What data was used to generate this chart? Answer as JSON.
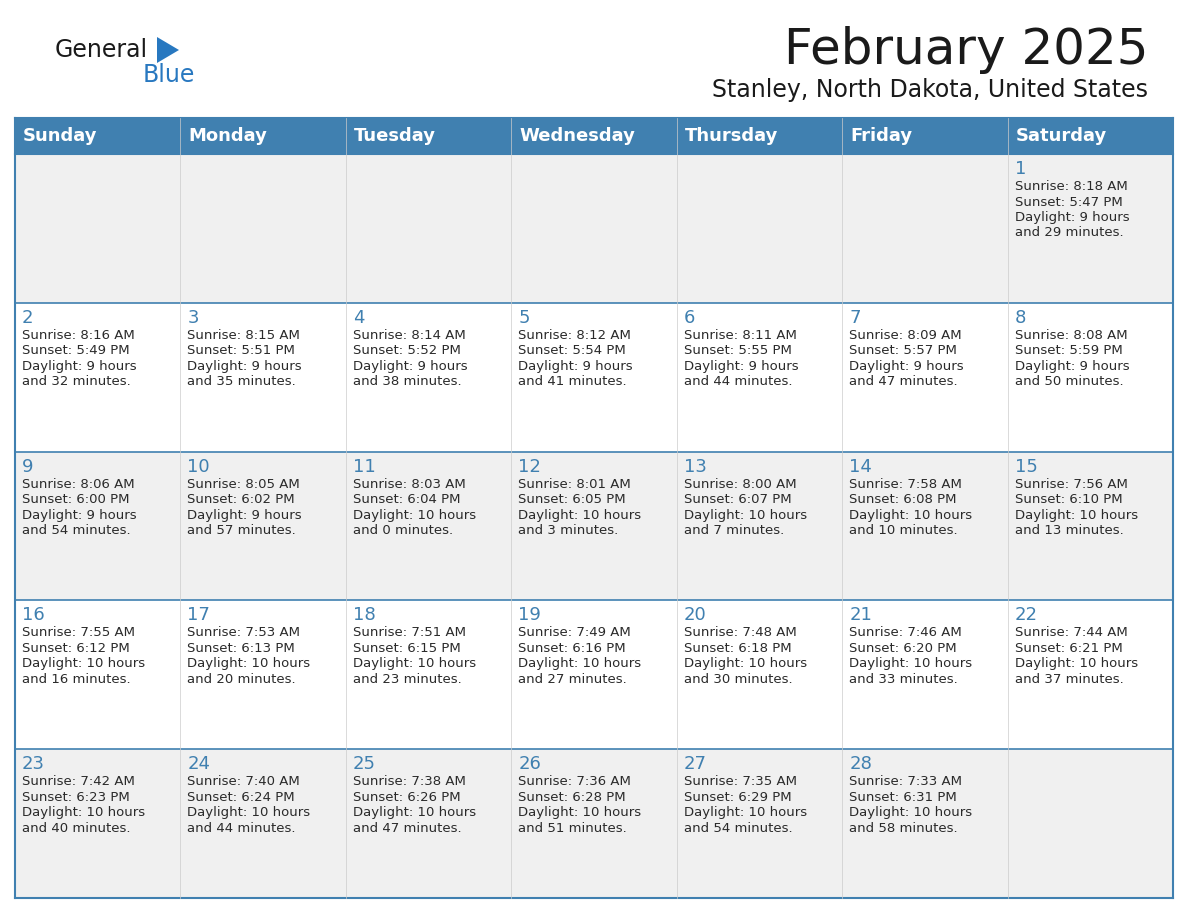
{
  "title": "February 2025",
  "subtitle": "Stanley, North Dakota, United States",
  "header_color": "#4080b0",
  "header_text_color": "#ffffff",
  "cell_bg_odd": "#f0f0f0",
  "cell_bg_even": "#ffffff",
  "border_color": "#4080b0",
  "border_light": "#cccccc",
  "day_headers": [
    "Sunday",
    "Monday",
    "Tuesday",
    "Wednesday",
    "Thursday",
    "Friday",
    "Saturday"
  ],
  "title_color": "#1a1a1a",
  "subtitle_color": "#1a1a1a",
  "day_number_color": "#4080b0",
  "info_color": "#2a2a2a",
  "logo_general_color": "#1a1a1a",
  "logo_blue_color": "#2878c0",
  "logo_triangle_color": "#2878c0",
  "calendar_data": [
    [
      null,
      null,
      null,
      null,
      null,
      null,
      {
        "day": 1,
        "sunrise": "8:18 AM",
        "sunset": "5:47 PM",
        "daylight": "9 hours and 29 minutes."
      }
    ],
    [
      {
        "day": 2,
        "sunrise": "8:16 AM",
        "sunset": "5:49 PM",
        "daylight": "9 hours and 32 minutes."
      },
      {
        "day": 3,
        "sunrise": "8:15 AM",
        "sunset": "5:51 PM",
        "daylight": "9 hours and 35 minutes."
      },
      {
        "day": 4,
        "sunrise": "8:14 AM",
        "sunset": "5:52 PM",
        "daylight": "9 hours and 38 minutes."
      },
      {
        "day": 5,
        "sunrise": "8:12 AM",
        "sunset": "5:54 PM",
        "daylight": "9 hours and 41 minutes."
      },
      {
        "day": 6,
        "sunrise": "8:11 AM",
        "sunset": "5:55 PM",
        "daylight": "9 hours and 44 minutes."
      },
      {
        "day": 7,
        "sunrise": "8:09 AM",
        "sunset": "5:57 PM",
        "daylight": "9 hours and 47 minutes."
      },
      {
        "day": 8,
        "sunrise": "8:08 AM",
        "sunset": "5:59 PM",
        "daylight": "9 hours and 50 minutes."
      }
    ],
    [
      {
        "day": 9,
        "sunrise": "8:06 AM",
        "sunset": "6:00 PM",
        "daylight": "9 hours and 54 minutes."
      },
      {
        "day": 10,
        "sunrise": "8:05 AM",
        "sunset": "6:02 PM",
        "daylight": "9 hours and 57 minutes."
      },
      {
        "day": 11,
        "sunrise": "8:03 AM",
        "sunset": "6:04 PM",
        "daylight": "10 hours and 0 minutes."
      },
      {
        "day": 12,
        "sunrise": "8:01 AM",
        "sunset": "6:05 PM",
        "daylight": "10 hours and 3 minutes."
      },
      {
        "day": 13,
        "sunrise": "8:00 AM",
        "sunset": "6:07 PM",
        "daylight": "10 hours and 7 minutes."
      },
      {
        "day": 14,
        "sunrise": "7:58 AM",
        "sunset": "6:08 PM",
        "daylight": "10 hours and 10 minutes."
      },
      {
        "day": 15,
        "sunrise": "7:56 AM",
        "sunset": "6:10 PM",
        "daylight": "10 hours and 13 minutes."
      }
    ],
    [
      {
        "day": 16,
        "sunrise": "7:55 AM",
        "sunset": "6:12 PM",
        "daylight": "10 hours and 16 minutes."
      },
      {
        "day": 17,
        "sunrise": "7:53 AM",
        "sunset": "6:13 PM",
        "daylight": "10 hours and 20 minutes."
      },
      {
        "day": 18,
        "sunrise": "7:51 AM",
        "sunset": "6:15 PM",
        "daylight": "10 hours and 23 minutes."
      },
      {
        "day": 19,
        "sunrise": "7:49 AM",
        "sunset": "6:16 PM",
        "daylight": "10 hours and 27 minutes."
      },
      {
        "day": 20,
        "sunrise": "7:48 AM",
        "sunset": "6:18 PM",
        "daylight": "10 hours and 30 minutes."
      },
      {
        "day": 21,
        "sunrise": "7:46 AM",
        "sunset": "6:20 PM",
        "daylight": "10 hours and 33 minutes."
      },
      {
        "day": 22,
        "sunrise": "7:44 AM",
        "sunset": "6:21 PM",
        "daylight": "10 hours and 37 minutes."
      }
    ],
    [
      {
        "day": 23,
        "sunrise": "7:42 AM",
        "sunset": "6:23 PM",
        "daylight": "10 hours and 40 minutes."
      },
      {
        "day": 24,
        "sunrise": "7:40 AM",
        "sunset": "6:24 PM",
        "daylight": "10 hours and 44 minutes."
      },
      {
        "day": 25,
        "sunrise": "7:38 AM",
        "sunset": "6:26 PM",
        "daylight": "10 hours and 47 minutes."
      },
      {
        "day": 26,
        "sunrise": "7:36 AM",
        "sunset": "6:28 PM",
        "daylight": "10 hours and 51 minutes."
      },
      {
        "day": 27,
        "sunrise": "7:35 AM",
        "sunset": "6:29 PM",
        "daylight": "10 hours and 54 minutes."
      },
      {
        "day": 28,
        "sunrise": "7:33 AM",
        "sunset": "6:31 PM",
        "daylight": "10 hours and 58 minutes."
      },
      null
    ]
  ]
}
